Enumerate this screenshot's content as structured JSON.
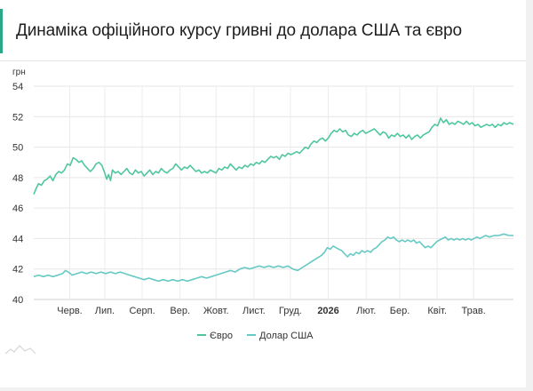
{
  "header": {
    "title": "Динаміка офіційного курсу гривні до долара США та євро"
  },
  "chart_data": {
    "type": "line",
    "title": "Динаміка офіційного курсу гривні до долара США та євро",
    "ylabel": "грн",
    "xlabel": "",
    "ylim": [
      40,
      54
    ],
    "yticks": [
      40,
      42,
      44,
      46,
      48,
      50,
      52,
      54
    ],
    "grid": true,
    "legend_position": "bottom",
    "x_tick_labels": [
      {
        "label": "Черв.",
        "t": 0.075,
        "bold": false
      },
      {
        "label": "Лип.",
        "t": 0.148,
        "bold": false
      },
      {
        "label": "Серп.",
        "t": 0.226,
        "bold": false
      },
      {
        "label": "Вер.",
        "t": 0.305,
        "bold": false
      },
      {
        "label": "Жовт.",
        "t": 0.38,
        "bold": false
      },
      {
        "label": "Лист.",
        "t": 0.459,
        "bold": false
      },
      {
        "label": "Груд.",
        "t": 0.535,
        "bold": false
      },
      {
        "label": "2026",
        "t": 0.614,
        "bold": true
      },
      {
        "label": "Лют.",
        "t": 0.693,
        "bold": false
      },
      {
        "label": "Бер.",
        "t": 0.763,
        "bold": false
      },
      {
        "label": "Квіт.",
        "t": 0.841,
        "bold": false
      },
      {
        "label": "Трав.",
        "t": 0.917,
        "bold": false
      }
    ],
    "series": [
      {
        "name": "Євро",
        "color": "#4fc79d",
        "points": [
          [
            0.0,
            46.9
          ],
          [
            0.005,
            47.3
          ],
          [
            0.01,
            47.6
          ],
          [
            0.016,
            47.5
          ],
          [
            0.022,
            47.8
          ],
          [
            0.028,
            47.9
          ],
          [
            0.034,
            48.1
          ],
          [
            0.04,
            47.8
          ],
          [
            0.046,
            48.2
          ],
          [
            0.052,
            48.4
          ],
          [
            0.058,
            48.3
          ],
          [
            0.064,
            48.5
          ],
          [
            0.07,
            48.9
          ],
          [
            0.076,
            48.8
          ],
          [
            0.082,
            49.3
          ],
          [
            0.088,
            49.2
          ],
          [
            0.094,
            49.0
          ],
          [
            0.1,
            49.1
          ],
          [
            0.106,
            48.8
          ],
          [
            0.112,
            48.6
          ],
          [
            0.118,
            48.4
          ],
          [
            0.124,
            48.6
          ],
          [
            0.13,
            48.9
          ],
          [
            0.136,
            49.0
          ],
          [
            0.142,
            48.8
          ],
          [
            0.148,
            48.3
          ],
          [
            0.152,
            47.9
          ],
          [
            0.156,
            48.2
          ],
          [
            0.16,
            47.8
          ],
          [
            0.164,
            48.5
          ],
          [
            0.17,
            48.3
          ],
          [
            0.176,
            48.4
          ],
          [
            0.182,
            48.2
          ],
          [
            0.188,
            48.4
          ],
          [
            0.194,
            48.6
          ],
          [
            0.2,
            48.3
          ],
          [
            0.206,
            48.2
          ],
          [
            0.212,
            48.5
          ],
          [
            0.218,
            48.3
          ],
          [
            0.224,
            48.4
          ],
          [
            0.23,
            48.1
          ],
          [
            0.236,
            48.3
          ],
          [
            0.242,
            48.5
          ],
          [
            0.248,
            48.2
          ],
          [
            0.254,
            48.4
          ],
          [
            0.26,
            48.3
          ],
          [
            0.266,
            48.6
          ],
          [
            0.272,
            48.4
          ],
          [
            0.278,
            48.3
          ],
          [
            0.284,
            48.5
          ],
          [
            0.29,
            48.6
          ],
          [
            0.296,
            48.9
          ],
          [
            0.302,
            48.7
          ],
          [
            0.308,
            48.5
          ],
          [
            0.314,
            48.7
          ],
          [
            0.32,
            48.6
          ],
          [
            0.326,
            48.8
          ],
          [
            0.332,
            48.6
          ],
          [
            0.338,
            48.4
          ],
          [
            0.344,
            48.5
          ],
          [
            0.35,
            48.3
          ],
          [
            0.356,
            48.4
          ],
          [
            0.362,
            48.3
          ],
          [
            0.368,
            48.5
          ],
          [
            0.374,
            48.4
          ],
          [
            0.38,
            48.3
          ],
          [
            0.386,
            48.6
          ],
          [
            0.392,
            48.5
          ],
          [
            0.398,
            48.7
          ],
          [
            0.404,
            48.6
          ],
          [
            0.41,
            48.9
          ],
          [
            0.416,
            48.7
          ],
          [
            0.422,
            48.5
          ],
          [
            0.428,
            48.7
          ],
          [
            0.434,
            48.6
          ],
          [
            0.44,
            48.8
          ],
          [
            0.446,
            48.7
          ],
          [
            0.452,
            48.9
          ],
          [
            0.458,
            48.8
          ],
          [
            0.464,
            49.0
          ],
          [
            0.47,
            48.9
          ],
          [
            0.476,
            49.1
          ],
          [
            0.482,
            49.0
          ],
          [
            0.488,
            49.2
          ],
          [
            0.494,
            49.4
          ],
          [
            0.5,
            49.3
          ],
          [
            0.506,
            49.4
          ],
          [
            0.512,
            49.2
          ],
          [
            0.518,
            49.5
          ],
          [
            0.524,
            49.4
          ],
          [
            0.53,
            49.6
          ],
          [
            0.536,
            49.5
          ],
          [
            0.542,
            49.6
          ],
          [
            0.548,
            49.7
          ],
          [
            0.554,
            49.6
          ],
          [
            0.56,
            49.8
          ],
          [
            0.566,
            50.0
          ],
          [
            0.572,
            49.9
          ],
          [
            0.578,
            50.2
          ],
          [
            0.584,
            50.4
          ],
          [
            0.59,
            50.3
          ],
          [
            0.596,
            50.5
          ],
          [
            0.602,
            50.6
          ],
          [
            0.608,
            50.4
          ],
          [
            0.614,
            50.6
          ],
          [
            0.62,
            50.9
          ],
          [
            0.626,
            51.1
          ],
          [
            0.632,
            51.0
          ],
          [
            0.638,
            51.2
          ],
          [
            0.644,
            51.0
          ],
          [
            0.65,
            51.1
          ],
          [
            0.656,
            50.8
          ],
          [
            0.662,
            50.7
          ],
          [
            0.668,
            50.9
          ],
          [
            0.674,
            50.8
          ],
          [
            0.68,
            51.0
          ],
          [
            0.686,
            51.1
          ],
          [
            0.692,
            50.9
          ],
          [
            0.698,
            51.0
          ],
          [
            0.704,
            51.1
          ],
          [
            0.71,
            51.2
          ],
          [
            0.716,
            51.0
          ],
          [
            0.722,
            50.8
          ],
          [
            0.728,
            51.0
          ],
          [
            0.734,
            50.9
          ],
          [
            0.74,
            50.6
          ],
          [
            0.746,
            50.8
          ],
          [
            0.752,
            50.7
          ],
          [
            0.758,
            50.9
          ],
          [
            0.764,
            50.7
          ],
          [
            0.77,
            50.8
          ],
          [
            0.776,
            50.6
          ],
          [
            0.782,
            50.8
          ],
          [
            0.788,
            50.5
          ],
          [
            0.794,
            50.7
          ],
          [
            0.8,
            50.8
          ],
          [
            0.806,
            50.6
          ],
          [
            0.812,
            50.8
          ],
          [
            0.818,
            50.9
          ],
          [
            0.824,
            51.0
          ],
          [
            0.83,
            51.3
          ],
          [
            0.836,
            51.5
          ],
          [
            0.842,
            51.4
          ],
          [
            0.848,
            51.9
          ],
          [
            0.854,
            51.6
          ],
          [
            0.86,
            51.8
          ],
          [
            0.866,
            51.5
          ],
          [
            0.872,
            51.6
          ],
          [
            0.878,
            51.5
          ],
          [
            0.884,
            51.7
          ],
          [
            0.89,
            51.6
          ],
          [
            0.896,
            51.5
          ],
          [
            0.902,
            51.7
          ],
          [
            0.908,
            51.5
          ],
          [
            0.914,
            51.6
          ],
          [
            0.92,
            51.4
          ],
          [
            0.926,
            51.5
          ],
          [
            0.932,
            51.3
          ],
          [
            0.938,
            51.4
          ],
          [
            0.944,
            51.5
          ],
          [
            0.95,
            51.4
          ],
          [
            0.956,
            51.5
          ],
          [
            0.962,
            51.3
          ],
          [
            0.968,
            51.5
          ],
          [
            0.974,
            51.4
          ],
          [
            0.98,
            51.6
          ],
          [
            0.986,
            51.5
          ],
          [
            0.992,
            51.6
          ],
          [
            1.0,
            51.5
          ]
        ]
      },
      {
        "name": "Долар США",
        "color": "#66c9c4",
        "points": [
          [
            0.0,
            41.5
          ],
          [
            0.01,
            41.6
          ],
          [
            0.02,
            41.5
          ],
          [
            0.03,
            41.6
          ],
          [
            0.04,
            41.5
          ],
          [
            0.05,
            41.6
          ],
          [
            0.06,
            41.7
          ],
          [
            0.066,
            41.9
          ],
          [
            0.072,
            41.8
          ],
          [
            0.08,
            41.6
          ],
          [
            0.09,
            41.7
          ],
          [
            0.1,
            41.8
          ],
          [
            0.11,
            41.7
          ],
          [
            0.12,
            41.8
          ],
          [
            0.13,
            41.7
          ],
          [
            0.14,
            41.8
          ],
          [
            0.15,
            41.7
          ],
          [
            0.16,
            41.8
          ],
          [
            0.17,
            41.7
          ],
          [
            0.18,
            41.8
          ],
          [
            0.19,
            41.7
          ],
          [
            0.2,
            41.6
          ],
          [
            0.21,
            41.5
          ],
          [
            0.22,
            41.4
          ],
          [
            0.23,
            41.3
          ],
          [
            0.24,
            41.4
          ],
          [
            0.25,
            41.3
          ],
          [
            0.26,
            41.2
          ],
          [
            0.27,
            41.3
          ],
          [
            0.28,
            41.2
          ],
          [
            0.29,
            41.3
          ],
          [
            0.3,
            41.2
          ],
          [
            0.31,
            41.3
          ],
          [
            0.32,
            41.2
          ],
          [
            0.33,
            41.3
          ],
          [
            0.34,
            41.4
          ],
          [
            0.35,
            41.5
          ],
          [
            0.36,
            41.4
          ],
          [
            0.37,
            41.5
          ],
          [
            0.38,
            41.6
          ],
          [
            0.39,
            41.7
          ],
          [
            0.4,
            41.8
          ],
          [
            0.41,
            41.9
          ],
          [
            0.42,
            41.8
          ],
          [
            0.43,
            42.0
          ],
          [
            0.44,
            42.1
          ],
          [
            0.45,
            42.0
          ],
          [
            0.46,
            42.1
          ],
          [
            0.47,
            42.2
          ],
          [
            0.48,
            42.1
          ],
          [
            0.49,
            42.2
          ],
          [
            0.5,
            42.1
          ],
          [
            0.51,
            42.2
          ],
          [
            0.52,
            42.1
          ],
          [
            0.53,
            42.2
          ],
          [
            0.54,
            42.0
          ],
          [
            0.55,
            41.9
          ],
          [
            0.56,
            42.1
          ],
          [
            0.57,
            42.3
          ],
          [
            0.58,
            42.5
          ],
          [
            0.59,
            42.7
          ],
          [
            0.6,
            42.9
          ],
          [
            0.606,
            43.1
          ],
          [
            0.612,
            43.4
          ],
          [
            0.618,
            43.3
          ],
          [
            0.624,
            43.5
          ],
          [
            0.63,
            43.4
          ],
          [
            0.636,
            43.3
          ],
          [
            0.642,
            43.2
          ],
          [
            0.648,
            43.0
          ],
          [
            0.654,
            42.8
          ],
          [
            0.66,
            43.0
          ],
          [
            0.666,
            42.9
          ],
          [
            0.672,
            43.1
          ],
          [
            0.678,
            43.0
          ],
          [
            0.684,
            43.2
          ],
          [
            0.69,
            43.1
          ],
          [
            0.696,
            43.2
          ],
          [
            0.702,
            43.1
          ],
          [
            0.708,
            43.3
          ],
          [
            0.714,
            43.4
          ],
          [
            0.72,
            43.6
          ],
          [
            0.726,
            43.8
          ],
          [
            0.732,
            43.9
          ],
          [
            0.738,
            44.1
          ],
          [
            0.744,
            44.0
          ],
          [
            0.75,
            44.1
          ],
          [
            0.756,
            43.9
          ],
          [
            0.762,
            43.8
          ],
          [
            0.768,
            43.9
          ],
          [
            0.774,
            43.8
          ],
          [
            0.78,
            43.9
          ],
          [
            0.786,
            43.8
          ],
          [
            0.792,
            43.9
          ],
          [
            0.798,
            43.7
          ],
          [
            0.804,
            43.8
          ],
          [
            0.81,
            43.6
          ],
          [
            0.816,
            43.4
          ],
          [
            0.822,
            43.5
          ],
          [
            0.828,
            43.4
          ],
          [
            0.834,
            43.6
          ],
          [
            0.84,
            43.8
          ],
          [
            0.846,
            43.9
          ],
          [
            0.852,
            44.0
          ],
          [
            0.858,
            44.1
          ],
          [
            0.864,
            43.9
          ],
          [
            0.87,
            44.0
          ],
          [
            0.876,
            43.9
          ],
          [
            0.882,
            44.0
          ],
          [
            0.888,
            43.9
          ],
          [
            0.894,
            44.0
          ],
          [
            0.9,
            43.9
          ],
          [
            0.906,
            44.0
          ],
          [
            0.912,
            43.9
          ],
          [
            0.918,
            44.0
          ],
          [
            0.924,
            44.1
          ],
          [
            0.93,
            44.0
          ],
          [
            0.936,
            44.1
          ],
          [
            0.942,
            44.2
          ],
          [
            0.95,
            44.1
          ],
          [
            0.96,
            44.2
          ],
          [
            0.97,
            44.2
          ],
          [
            0.98,
            44.3
          ],
          [
            0.99,
            44.2
          ],
          [
            1.0,
            44.2
          ]
        ]
      }
    ]
  }
}
